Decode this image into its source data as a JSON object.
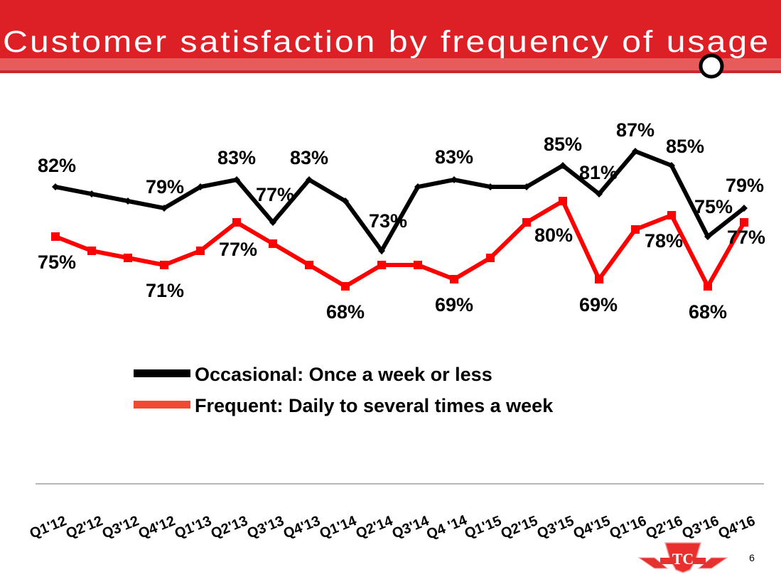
{
  "slide": {
    "title": "Customer satisfaction by frequency of usage",
    "page_number": "6",
    "logo": "ttc-logo-icon",
    "colors": {
      "header_red": "#dd2026",
      "header_band": "#e85b5b",
      "header_strip": "#c62a2f",
      "occasional_line": "#000000",
      "frequent_line": "#ff0000",
      "frequent_legend_swatch": "#f04a2f"
    }
  },
  "chart_data": {
    "type": "line",
    "title": "Customer satisfaction by frequency of usage",
    "xlabel": "",
    "ylabel": "",
    "ylim": [
      60,
      90
    ],
    "grid": false,
    "legend_position": "center",
    "categories": [
      "Q1'12",
      "Q2'12",
      "Q3'12",
      "Q4'12",
      "Q1'13",
      "Q2'13",
      "Q3'13",
      "Q4'13",
      "Q1'14",
      "Q2'14",
      "Q3'14",
      "Q4 '14",
      "Q1'15",
      "Q2'15",
      "Q3'15",
      "Q4'15",
      "Q1'16",
      "Q2'16",
      "Q3'16",
      "Q4'16"
    ],
    "series": [
      {
        "name": "Occasional: Once a week or less",
        "color": "#000000",
        "marker": "diamond",
        "values": [
          82,
          81,
          80,
          79,
          82,
          83,
          77,
          83,
          80,
          73,
          82,
          83,
          82,
          82,
          85,
          81,
          87,
          85,
          75,
          79
        ],
        "labels": [
          {
            "index": 0,
            "text": "82%"
          },
          {
            "index": 3,
            "text": "79%"
          },
          {
            "index": 5,
            "text": "83%"
          },
          {
            "index": 6,
            "text": "77%"
          },
          {
            "index": 7,
            "text": "83%"
          },
          {
            "index": 9,
            "text": "73%"
          },
          {
            "index": 11,
            "text": "83%"
          },
          {
            "index": 14,
            "text": "85%"
          },
          {
            "index": 15,
            "text": "81%"
          },
          {
            "index": 16,
            "text": "87%"
          },
          {
            "index": 17,
            "text": "85%"
          },
          {
            "index": 18,
            "text": "75%"
          },
          {
            "index": 19,
            "text": "79%"
          }
        ]
      },
      {
        "name": "Frequent: Daily to several times a week",
        "color": "#ff0000",
        "marker": "square",
        "values": [
          75,
          73,
          72,
          71,
          73,
          77,
          74,
          71,
          68,
          71,
          71,
          69,
          72,
          77,
          80,
          69,
          76,
          78,
          68,
          77
        ],
        "labels": [
          {
            "index": 0,
            "text": "75%"
          },
          {
            "index": 3,
            "text": "71%"
          },
          {
            "index": 5,
            "text": "77%"
          },
          {
            "index": 8,
            "text": "68%"
          },
          {
            "index": 11,
            "text": "69%"
          },
          {
            "index": 14,
            "text": "80%"
          },
          {
            "index": 15,
            "text": "69%"
          },
          {
            "index": 17,
            "text": "78%"
          },
          {
            "index": 18,
            "text": "68%"
          },
          {
            "index": 19,
            "text": "77%"
          }
        ]
      }
    ]
  }
}
